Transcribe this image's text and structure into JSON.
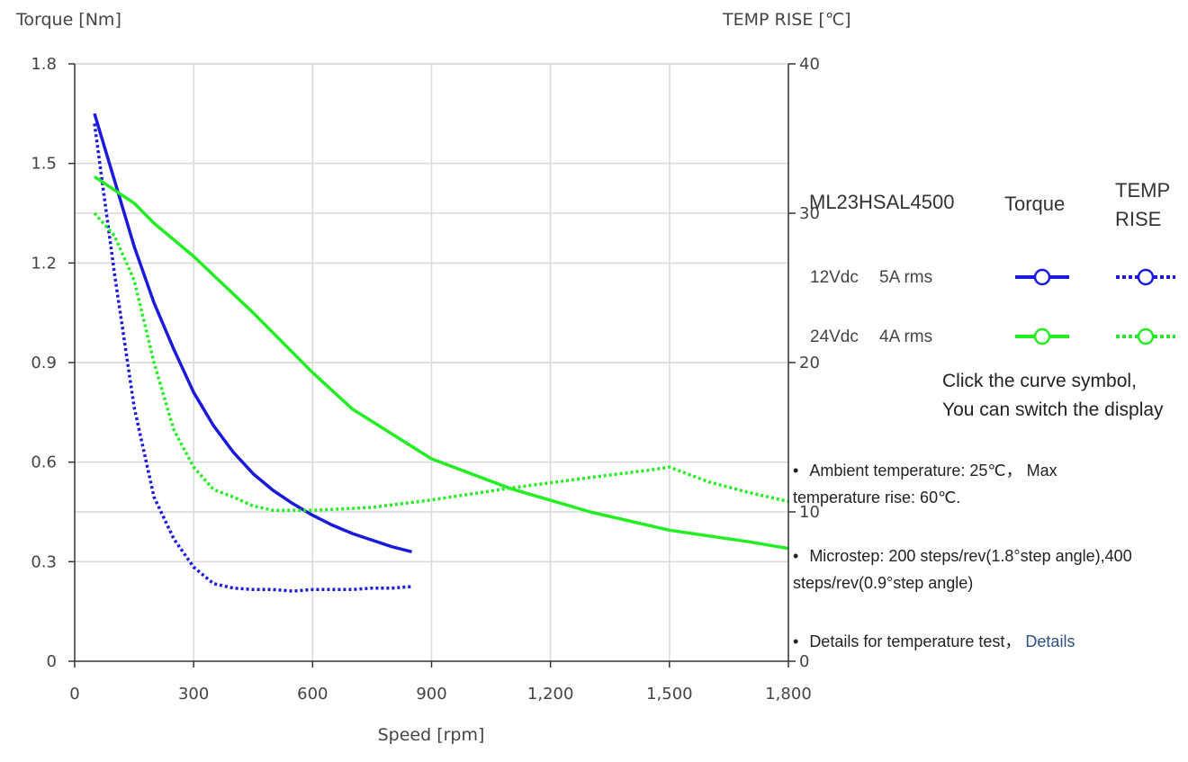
{
  "chart_data": {
    "type": "line",
    "xlabel": "Speed [rpm]",
    "ylabel_left": "Torque  [Nm]",
    "ylabel_right": "TEMP RISE [℃]",
    "x_range": [
      0,
      1800
    ],
    "y_left_range": [
      0,
      1.8
    ],
    "y_right_range": [
      0,
      40
    ],
    "x_ticks": [
      0,
      300,
      600,
      900,
      1200,
      1500,
      1800
    ],
    "x_tick_labels": [
      "0",
      "300",
      "600",
      "900",
      "1,200",
      "1,500",
      "1,800"
    ],
    "y_left_ticks": [
      0,
      0.3,
      0.6,
      0.9,
      1.2,
      1.5,
      1.8
    ],
    "y_left_tick_labels": [
      "0",
      "0.3",
      "0.6",
      "0.9",
      "1.2",
      "1.5",
      "1.8"
    ],
    "y_right_ticks": [
      0,
      10,
      20,
      30,
      40
    ],
    "y_right_tick_labels": [
      "0",
      "10",
      "20",
      "30",
      "40"
    ],
    "grid": true,
    "series": [
      {
        "name": "12Vdc 5A rms Torque",
        "axis": "left",
        "style": "solid",
        "color": "#1a1adc",
        "x": [
          50,
          100,
          150,
          200,
          250,
          300,
          350,
          400,
          450,
          500,
          550,
          600,
          650,
          700,
          750,
          800,
          850
        ],
        "y": [
          1.65,
          1.45,
          1.25,
          1.08,
          0.94,
          0.81,
          0.71,
          0.63,
          0.565,
          0.515,
          0.475,
          0.44,
          0.41,
          0.385,
          0.365,
          0.345,
          0.33
        ]
      },
      {
        "name": "12Vdc 5A rms TEMP RISE",
        "axis": "right",
        "style": "dotted",
        "color": "#1a1adc",
        "x": [
          50,
          100,
          150,
          200,
          250,
          300,
          350,
          400,
          450,
          500,
          550,
          600,
          650,
          700,
          750,
          800,
          850
        ],
        "y": [
          36,
          26,
          17,
          11,
          8.2,
          6.3,
          5.2,
          4.9,
          4.8,
          4.8,
          4.7,
          4.8,
          4.8,
          4.8,
          4.9,
          4.9,
          5.0
        ]
      },
      {
        "name": "24Vdc 4A rms Torque",
        "axis": "left",
        "style": "solid",
        "color": "#22ee22",
        "x": [
          50,
          150,
          200,
          300,
          450,
          600,
          700,
          900,
          1100,
          1300,
          1500,
          1700,
          1800
        ],
        "y": [
          1.46,
          1.38,
          1.32,
          1.22,
          1.05,
          0.87,
          0.76,
          0.61,
          0.52,
          0.45,
          0.395,
          0.36,
          0.34
        ]
      },
      {
        "name": "24Vdc 4A rms TEMP RISE",
        "axis": "right",
        "style": "dotted",
        "color": "#22ee22",
        "x": [
          50,
          100,
          150,
          200,
          250,
          300,
          350,
          400,
          450,
          500,
          600,
          750,
          900,
          1100,
          1300,
          1450,
          1500,
          1600,
          1700,
          1800
        ],
        "y": [
          30,
          28.5,
          25.5,
          20,
          15.5,
          13,
          11.5,
          11,
          10.4,
          10.1,
          10.1,
          10.3,
          10.8,
          11.6,
          12.3,
          12.8,
          13,
          12,
          11.3,
          10.7
        ]
      }
    ]
  },
  "legend": {
    "model": "ML23HSAL4500",
    "col_torque": "Torque",
    "col_temp_line1": "TEMP",
    "col_temp_line2": "RISE",
    "row1_voltage": "12Vdc",
    "row1_current": "5A rms",
    "row2_voltage": "24Vdc",
    "row2_current": "4A rms"
  },
  "hint": {
    "line1": "Click the curve symbol,",
    "line2": "You can switch the display"
  },
  "notes": {
    "bullet": "•",
    "ambient": "Ambient temperature: 25℃， Max temperature rise: 60℃.",
    "microstep": "Microstep: 200 steps/rev(1.8°step angle),400 steps/rev(0.9°step angle)",
    "details_text": "Details for temperature test，",
    "details_link": "Details"
  },
  "colors": {
    "blue": "#1a1adc",
    "green": "#22ee22",
    "grid": "#d9d9d9",
    "axis": "#333333",
    "link": "#2b5080"
  },
  "icons": [
    "legend-solid-circle-icon",
    "legend-dotted-circle-icon"
  ]
}
